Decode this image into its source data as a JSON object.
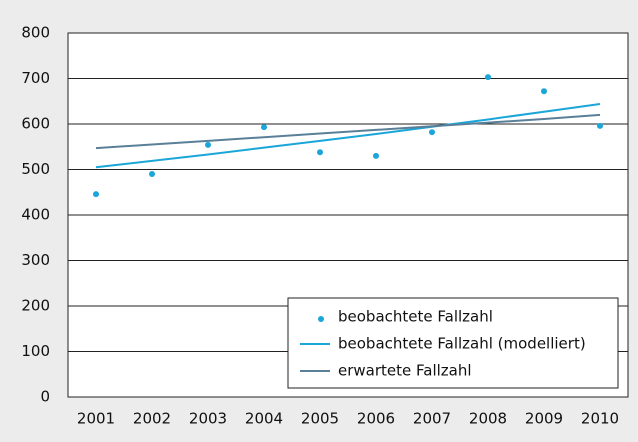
{
  "chart_data": {
    "type": "line",
    "categories": [
      "2001",
      "2002",
      "2003",
      "2004",
      "2005",
      "2006",
      "2007",
      "2008",
      "2009",
      "2010"
    ],
    "series": [
      {
        "name": "beobachtete Fallzahl",
        "style": "markers",
        "color": "#1aa6d9",
        "values": [
          446,
          490,
          554,
          593,
          538,
          530,
          582,
          703,
          672,
          596
        ]
      },
      {
        "name": "beobachtete Fallzahl (modelliert)",
        "style": "line",
        "color": "#1aa6d9",
        "values": [
          505,
          519,
          533,
          548,
          563,
          578,
          594,
          610,
          627,
          644
        ]
      },
      {
        "name": "erwartete Fallzahl",
        "style": "line",
        "color": "#5a7f99",
        "values": [
          547,
          555,
          563,
          571,
          579,
          587,
          595,
          603,
          611,
          620
        ]
      }
    ],
    "ylim": [
      0,
      800
    ],
    "yticks": [
      0,
      100,
      200,
      300,
      400,
      500,
      600,
      700,
      800
    ],
    "grid": true,
    "legend": "bottom-right"
  }
}
